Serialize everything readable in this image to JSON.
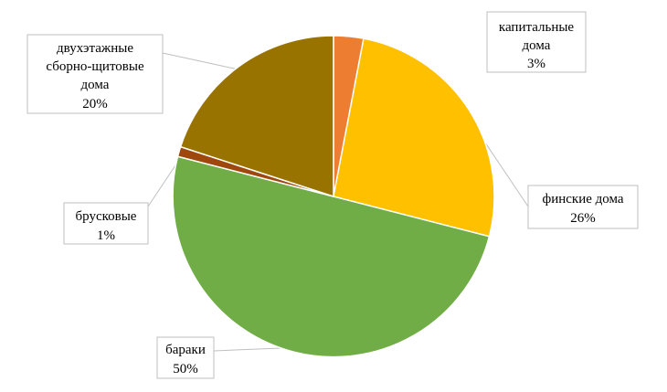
{
  "chart_data": {
    "type": "pie",
    "title": "",
    "start_angle_deg": 0,
    "direction": "clockwise",
    "slices": [
      {
        "label_lines": [
          "капитальные",
          "дома"
        ],
        "pct_label": "3%",
        "value": 3,
        "color": "#ED7D31"
      },
      {
        "label_lines": [
          "финские дома"
        ],
        "pct_label": "26%",
        "value": 26,
        "color": "#FFC000"
      },
      {
        "label_lines": [
          "бараки"
        ],
        "pct_label": "50%",
        "value": 50,
        "color": "#70AD47"
      },
      {
        "label_lines": [
          "брусковые"
        ],
        "pct_label": "1%",
        "value": 1,
        "color": "#9E480E"
      },
      {
        "label_lines": [
          "двухэтажные",
          "сборно-щитовые",
          "дома"
        ],
        "pct_label": "20%",
        "value": 20,
        "color": "#997300"
      }
    ]
  }
}
